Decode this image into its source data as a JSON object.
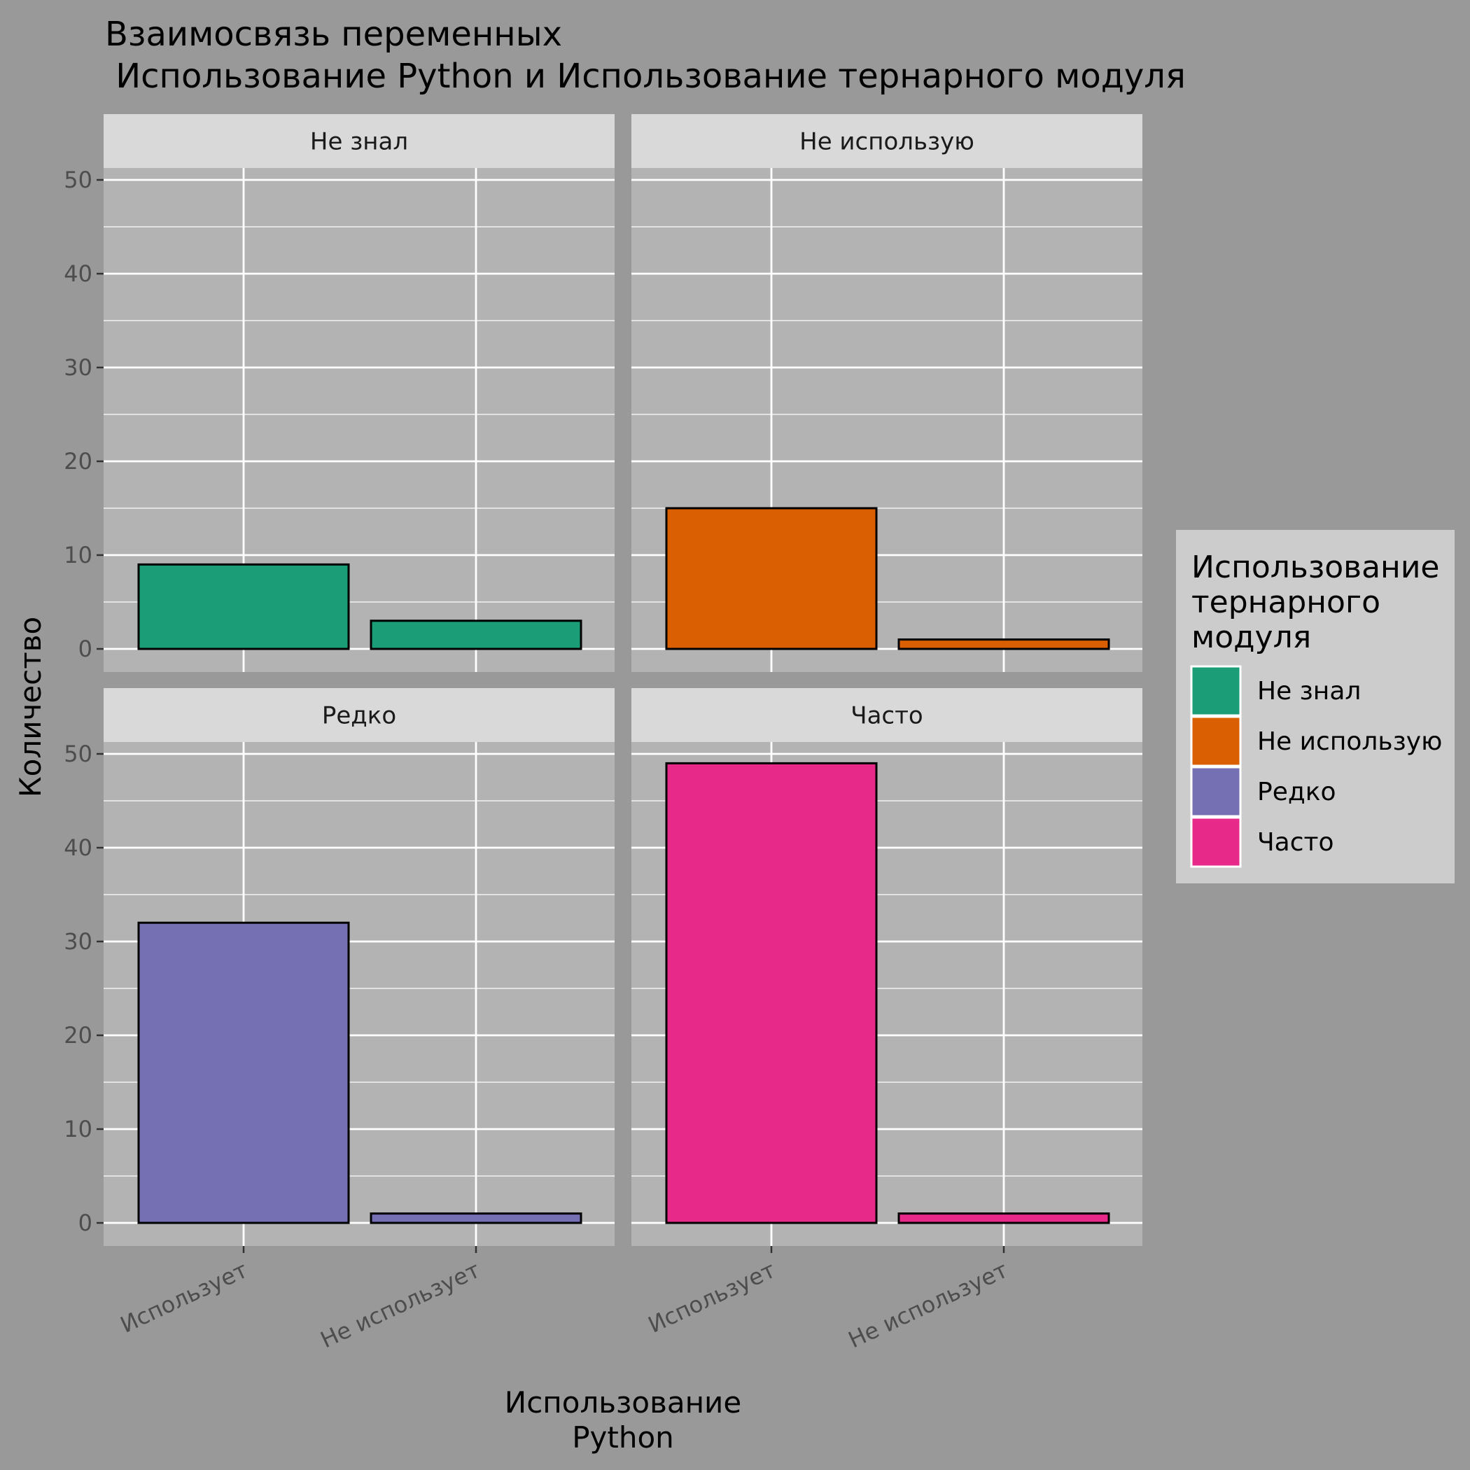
{
  "chart_data": {
    "type": "bar",
    "title_line1": "Взаимосвязь переменных",
    "title_line2": " Использование Python и Использование тернарного модуля",
    "xlabel_line1": "Использование",
    "xlabel_line2": "Python",
    "ylabel": "Количество",
    "ylim": [
      0,
      55
    ],
    "yticks": [
      0,
      10,
      20,
      30,
      40,
      50
    ],
    "categories": [
      "Использует",
      "Не использует"
    ],
    "facets": [
      {
        "name": "Не знал",
        "color": "#1B9E77",
        "values": [
          9,
          3
        ]
      },
      {
        "name": "Не использую",
        "color": "#D95F02",
        "values": [
          15,
          1
        ]
      },
      {
        "name": "Редко",
        "color": "#7570B3",
        "values": [
          32,
          1
        ]
      },
      {
        "name": "Часто",
        "color": "#E7298A",
        "values": [
          49,
          1
        ]
      }
    ],
    "legend": {
      "title_lines": [
        "Использование",
        "тернарного",
        "модуля"
      ],
      "placement": "right"
    },
    "colors": {
      "background": "#999999",
      "panel": "#B3B3B3",
      "strip": "#D9D9D9",
      "legend_box": "#CCCCCC",
      "grid": "#FFFFFF"
    }
  }
}
